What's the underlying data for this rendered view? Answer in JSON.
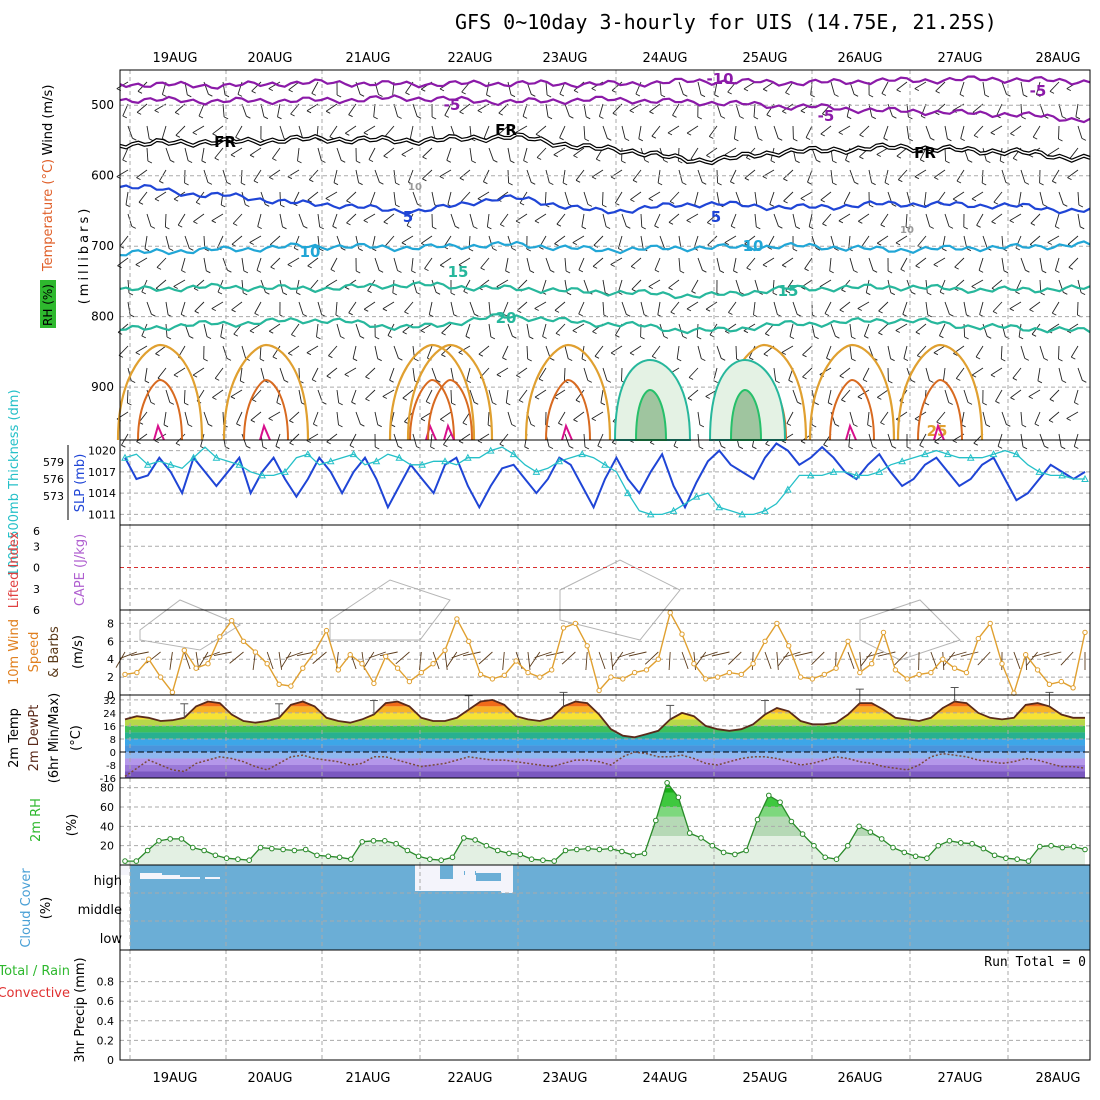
{
  "title": "GFS 0~10day 3-hourly for UIS (14.75E, 21.25S)",
  "dates": [
    "19AUG",
    "20AUG",
    "21AUG",
    "22AUG",
    "23AUG",
    "24AUG",
    "25AUG",
    "26AUG",
    "27AUG",
    "28AUG"
  ],
  "colors": {
    "frame": "#000000",
    "grid": "#aaaaaa",
    "purple": "#8b1aa8",
    "black": "#000000",
    "blue": "#1f45d6",
    "lightblue": "#21a6d6",
    "teal": "#27b79c",
    "green": "#26c06a",
    "orange": "#e0a030",
    "darkorange": "#d86a20",
    "magenta": "#d8108c",
    "gray": "#b5b5b5",
    "cloud": "#6baed6",
    "cyan": "#25c0c8",
    "rhgreen": "#2eb82e",
    "purplelabel": "#b060d0"
  },
  "chart_data": [
    {
      "panel": "upper_air_cross_section",
      "type": "contour",
      "ylabel": [
        "(millibars)",
        "Wind (m/s)",
        "Temperature (°C)",
        "RH (%)"
      ],
      "y_ticks": [
        500,
        600,
        700,
        800,
        900
      ],
      "ylim": [
        450,
        975
      ],
      "contour_labels": [
        "-10",
        "-5",
        "-5",
        "-5",
        "FR",
        "FR",
        "FR",
        "5",
        "5",
        "10",
        "10",
        "10",
        "10",
        "15",
        "15",
        "20",
        "25"
      ],
      "isotherms": [
        {
          "label": "-10",
          "color": "purple",
          "levels": [
            470,
            472,
            468,
            470,
            469,
            470,
            466,
            468,
            465,
            463,
            466
          ]
        },
        {
          "label": "-5",
          "color": "purple",
          "levels": [
            492,
            494,
            493,
            490,
            495,
            492,
            496,
            502,
            508,
            512,
            520
          ]
        },
        {
          "label": "FR",
          "color": "black",
          "levels": [
            555,
            552,
            548,
            550,
            545,
            562,
            578,
            565,
            560,
            565,
            575
          ]
        },
        {
          "label": "5",
          "color": "blue",
          "levels": [
            615,
            628,
            640,
            650,
            632,
            650,
            640,
            645,
            640,
            642,
            650
          ]
        },
        {
          "label": "10",
          "color": "lightblue",
          "levels": [
            710,
            705,
            700,
            702,
            698,
            705,
            702,
            700,
            705,
            702,
            698
          ]
        },
        {
          "label": "15",
          "color": "teal",
          "levels": [
            762,
            758,
            760,
            755,
            760,
            765,
            770,
            760,
            758,
            762,
            760
          ]
        },
        {
          "label": "20",
          "color": "teal",
          "levels": [
            818,
            810,
            805,
            815,
            800,
            810,
            820,
            810,
            805,
            815,
            820
          ]
        }
      ]
    },
    {
      "panel": "slp_thickness",
      "type": "line",
      "ylabel_left": "1000-500mb Thickness (dm)",
      "ylabel_right": "SLP (mb)",
      "thickness_ticks": [
        579,
        576,
        573
      ],
      "slp_ticks": [
        1020,
        1017,
        1014,
        1011
      ],
      "ylim_slp": [
        1009.5,
        1021.5
      ],
      "series": [
        {
          "name": "SLP (mb)",
          "color": "blue",
          "values": [
            1019,
            1016,
            1016.5,
            1019,
            1017,
            1014,
            1019,
            1017,
            1015,
            1017,
            1019,
            1014,
            1017,
            1019,
            1016,
            1013.5,
            1016,
            1019,
            1017,
            1014,
            1017,
            1019,
            1016,
            1012,
            1015,
            1018,
            1016,
            1014,
            1018,
            1019,
            1015,
            1012,
            1015,
            1017.5,
            1018,
            1016,
            1014,
            1016,
            1019,
            1018,
            1015,
            1012,
            1016,
            1019,
            1016,
            1014,
            1017,
            1019.5,
            1015,
            1012,
            1015.5,
            1018.5,
            1020,
            1018,
            1017,
            1016,
            1019,
            1021,
            1020,
            1018,
            1019,
            1020.5,
            1019,
            1017,
            1016,
            1018,
            1019.5,
            1017,
            1015,
            1016,
            1018,
            1019,
            1017,
            1015,
            1016,
            1018,
            1019,
            1016,
            1013,
            1014,
            1016,
            1018,
            1017,
            1016,
            1017
          ]
        },
        {
          "name": "Thickness (dm)",
          "color": "cyan",
          "values": [
            1019,
            1019.5,
            1018,
            1018.5,
            1018,
            1017.5,
            1019,
            1020.5,
            1019,
            1018.5,
            1018,
            1017,
            1016.5,
            1016.5,
            1017,
            1019,
            1019.5,
            1018,
            1018.5,
            1019,
            1019.5,
            1018,
            1018.5,
            1019.5,
            1019,
            1018,
            1018,
            1018.5,
            1018.5,
            1018,
            1019,
            1019,
            1020,
            1020.5,
            1019.5,
            1018,
            1017,
            1017.5,
            1018.5,
            1019,
            1019.5,
            1019,
            1018,
            1017,
            1014,
            1011.5,
            1011,
            1011,
            1011.5,
            1012.5,
            1013.5,
            1014,
            1012,
            1011.5,
            1011,
            1011,
            1011.5,
            1012.5,
            1014.5,
            1016.5,
            1016.5,
            1016.5,
            1017,
            1017,
            1016.5,
            1016.5,
            1017,
            1018,
            1018.5,
            1019,
            1019.5,
            1020,
            1019.5,
            1019,
            1019,
            1019,
            1019.5,
            1020,
            1019.5,
            1018,
            1017,
            1016.5,
            1016.5,
            1016,
            1016
          ]
        }
      ]
    },
    {
      "panel": "lifted_index_cape",
      "type": "line",
      "ylabel_left": "Lifted Index",
      "ylabel_right": "CAPE (J/kg)",
      "y_ticks": [
        "6",
        "3",
        "0",
        "3",
        "6"
      ],
      "ylim": [
        -6,
        6
      ],
      "lifted_index_values": [
        0
      ]
    },
    {
      "panel": "wind_10m",
      "type": "line",
      "ylabel": "10m Wind Speed & Barbs (m/s)",
      "y_ticks": [
        0,
        2,
        4,
        6,
        8
      ],
      "ylim": [
        0,
        9.5
      ],
      "series": [
        {
          "name": "10m wind speed (m/s)",
          "color": "orange",
          "values": [
            2.3,
            2.5,
            4.0,
            2.0,
            0.3,
            5.0,
            3.0,
            3.5,
            6.5,
            8.3,
            6.0,
            4.8,
            3.5,
            1.2,
            1.0,
            3.0,
            4.8,
            7.2,
            2.8,
            4.5,
            3.5,
            1.3,
            4.3,
            3.0,
            1.5,
            2.5,
            3.5,
            5.0,
            8.5,
            6.0,
            2.3,
            1.8,
            2.2,
            3.8,
            2.5,
            2.0,
            2.8,
            7.5,
            8.0,
            5.5,
            0.5,
            2.0,
            1.8,
            2.5,
            2.8,
            4.0,
            9.2,
            6.8,
            3.5,
            1.8,
            2.0,
            2.5,
            2.3,
            3.5,
            6.0,
            8.0,
            5.5,
            2.0,
            1.8,
            2.3,
            3.0,
            6.0,
            2.5,
            3.5,
            7.0,
            2.8,
            1.8,
            2.3,
            2.5,
            4.0,
            3.0,
            2.5,
            6.3,
            8.0,
            3.5,
            0.2,
            4.5,
            2.8,
            1.2,
            1.5,
            0.8,
            7.0
          ]
        }
      ]
    },
    {
      "panel": "temperature_dewpoint",
      "type": "area",
      "ylabel": "2m Temp 2m DewPt (6hr Min/Max) (°C)",
      "y_ticks": [
        32,
        24,
        16,
        8,
        0,
        -8,
        -16
      ],
      "ylim": [
        -16,
        35
      ],
      "series": [
        {
          "name": "2m Temp (°C)",
          "color": "black",
          "values": [
            20,
            22,
            21,
            19,
            19.5,
            21,
            28,
            31,
            30,
            23,
            19,
            18,
            19,
            21,
            29,
            31,
            28,
            21,
            19,
            18,
            20,
            23,
            30,
            31,
            28,
            21,
            19,
            19,
            21,
            26,
            31,
            32,
            29,
            22,
            20,
            19,
            21,
            28,
            31,
            30,
            23,
            14,
            10,
            9,
            11,
            13,
            20,
            24,
            22,
            16,
            14,
            13,
            14,
            17,
            23,
            27,
            25,
            19,
            17,
            17,
            18,
            23,
            30,
            30,
            26,
            21,
            20,
            19,
            21,
            27,
            31,
            30,
            24,
            21,
            20,
            21,
            29,
            30,
            28,
            23,
            21,
            21
          ]
        },
        {
          "name": "2m DewPt (°C)",
          "color": "brown",
          "values": [
            -15,
            -10,
            -5,
            -8,
            -11,
            -12,
            -7,
            -5,
            -3,
            -4,
            -6,
            -9,
            -11,
            -7,
            -3,
            -2,
            -4,
            -5,
            -6,
            -8,
            -7,
            -3,
            -3,
            -5,
            -7,
            -9,
            -8,
            -7,
            -5,
            -3,
            -4,
            -5,
            -5,
            -6,
            -7,
            -8,
            -9,
            -7,
            -5,
            -5,
            -6,
            -8,
            -3,
            0,
            -1,
            -3,
            -3,
            -2,
            -4,
            -7,
            -8,
            -6,
            -4,
            -3,
            -3,
            -4,
            -6,
            -8,
            -7,
            -5,
            -3,
            -4,
            -6,
            -7,
            -9,
            -10,
            -11,
            -8,
            -3,
            -1,
            -2,
            -3,
            -5,
            -6,
            -7,
            -6,
            -4,
            -5,
            -7,
            -9,
            -9,
            -10
          ]
        }
      ]
    },
    {
      "panel": "relative_humidity",
      "type": "area",
      "ylabel": "2m RH (%)",
      "y_ticks": [
        20,
        40,
        60,
        80
      ],
      "ylim": [
        0,
        90
      ],
      "series": [
        {
          "name": "2m RH (%)",
          "color": "green",
          "values": [
            4,
            4,
            15,
            25,
            27,
            27,
            18,
            15,
            10,
            7,
            6,
            5,
            18,
            17,
            16,
            15,
            16,
            10,
            9,
            8,
            6,
            24,
            25,
            25,
            22,
            15,
            9,
            6,
            5,
            8,
            28,
            26,
            20,
            15,
            12,
            11,
            6,
            5,
            4,
            15,
            16,
            17,
            16,
            17,
            14,
            10,
            12,
            46,
            85,
            70,
            33,
            28,
            20,
            13,
            11,
            15,
            47,
            72,
            65,
            45,
            32,
            20,
            8,
            6,
            20,
            40,
            34,
            27,
            18,
            13,
            9,
            7,
            20,
            25,
            23,
            22,
            17,
            10,
            7,
            6,
            4,
            19,
            20,
            18,
            19,
            16
          ]
        }
      ]
    },
    {
      "panel": "cloud_cover",
      "type": "heatmap",
      "ylabel": "Cloud Cover (%)",
      "levels": [
        "high",
        "middle",
        "low"
      ],
      "description_values": {
        "high_cover_segments_percent_by_time": [
          85,
          90,
          85,
          90,
          90,
          85,
          90,
          90,
          90,
          20,
          10,
          20,
          10,
          15,
          10,
          10,
          20,
          95
        ]
      }
    },
    {
      "panel": "precipitation",
      "type": "bar",
      "ylabel": "3hr Precip (mm)",
      "legend": [
        "Total / Rain",
        "Convective"
      ],
      "annotation": "Run Total = 0",
      "y_ticks": [
        "0",
        "0.2",
        "0.4",
        "0.6",
        "0.8"
      ],
      "ylim": [
        0,
        1
      ],
      "values": [
        0
      ]
    }
  ]
}
